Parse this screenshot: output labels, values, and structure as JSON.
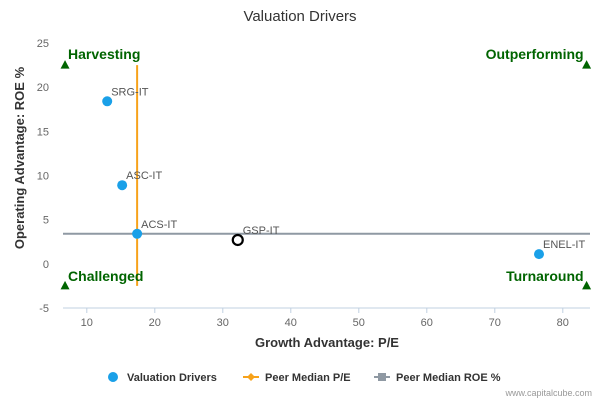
{
  "chart_data": {
    "type": "scatter",
    "title": "Valuation Drivers",
    "xlabel": "Growth Advantage: P/E",
    "ylabel": "Operating Advantage: ROE %",
    "xlim": [
      6.5,
      84
    ],
    "ylim": [
      -5,
      25
    ],
    "xticks": [
      10,
      20,
      30,
      40,
      50,
      60,
      70,
      80
    ],
    "yticks": [
      -5,
      0,
      5,
      10,
      15,
      20,
      25
    ],
    "grid": false,
    "legend_position": "bottom",
    "series": [
      {
        "name": "Valuation Drivers",
        "color": "#1aa0e8",
        "points": [
          {
            "label": "SRG-IT",
            "x": 13.0,
            "y": 18.4
          },
          {
            "label": "ASC-IT",
            "x": 15.2,
            "y": 8.9
          },
          {
            "label": "ACS-IT",
            "x": 17.4,
            "y": 3.4
          },
          {
            "label": "ENEL-IT",
            "x": 76.5,
            "y": 1.1
          }
        ]
      },
      {
        "name": "Peer Median P/E",
        "color": "#f7a21a",
        "x": 17.4,
        "y_range": [
          -2.5,
          22.5
        ]
      },
      {
        "name": "Peer Median ROE %",
        "color": "#8f99a3",
        "y": 3.4,
        "x_range": [
          6.5,
          84
        ]
      }
    ],
    "highlight": {
      "label": "GSP-IT",
      "x": 32.2,
      "y": 2.7
    },
    "quadrant_labels": [
      {
        "text": "Harvesting",
        "corner": "top-left",
        "x": 6.8,
        "y": 22.5
      },
      {
        "text": "Outperforming",
        "corner": "top-right",
        "x": 83.5,
        "y": 22.5
      },
      {
        "text": "Challenged",
        "corner": "bottom-left",
        "x": 6.8,
        "y": -2.5
      },
      {
        "text": "Turnaround",
        "corner": "bottom-right",
        "x": 83.5,
        "y": -2.5
      }
    ],
    "quadrant_color": "#006400"
  },
  "credit": "www.capitalcube.com"
}
